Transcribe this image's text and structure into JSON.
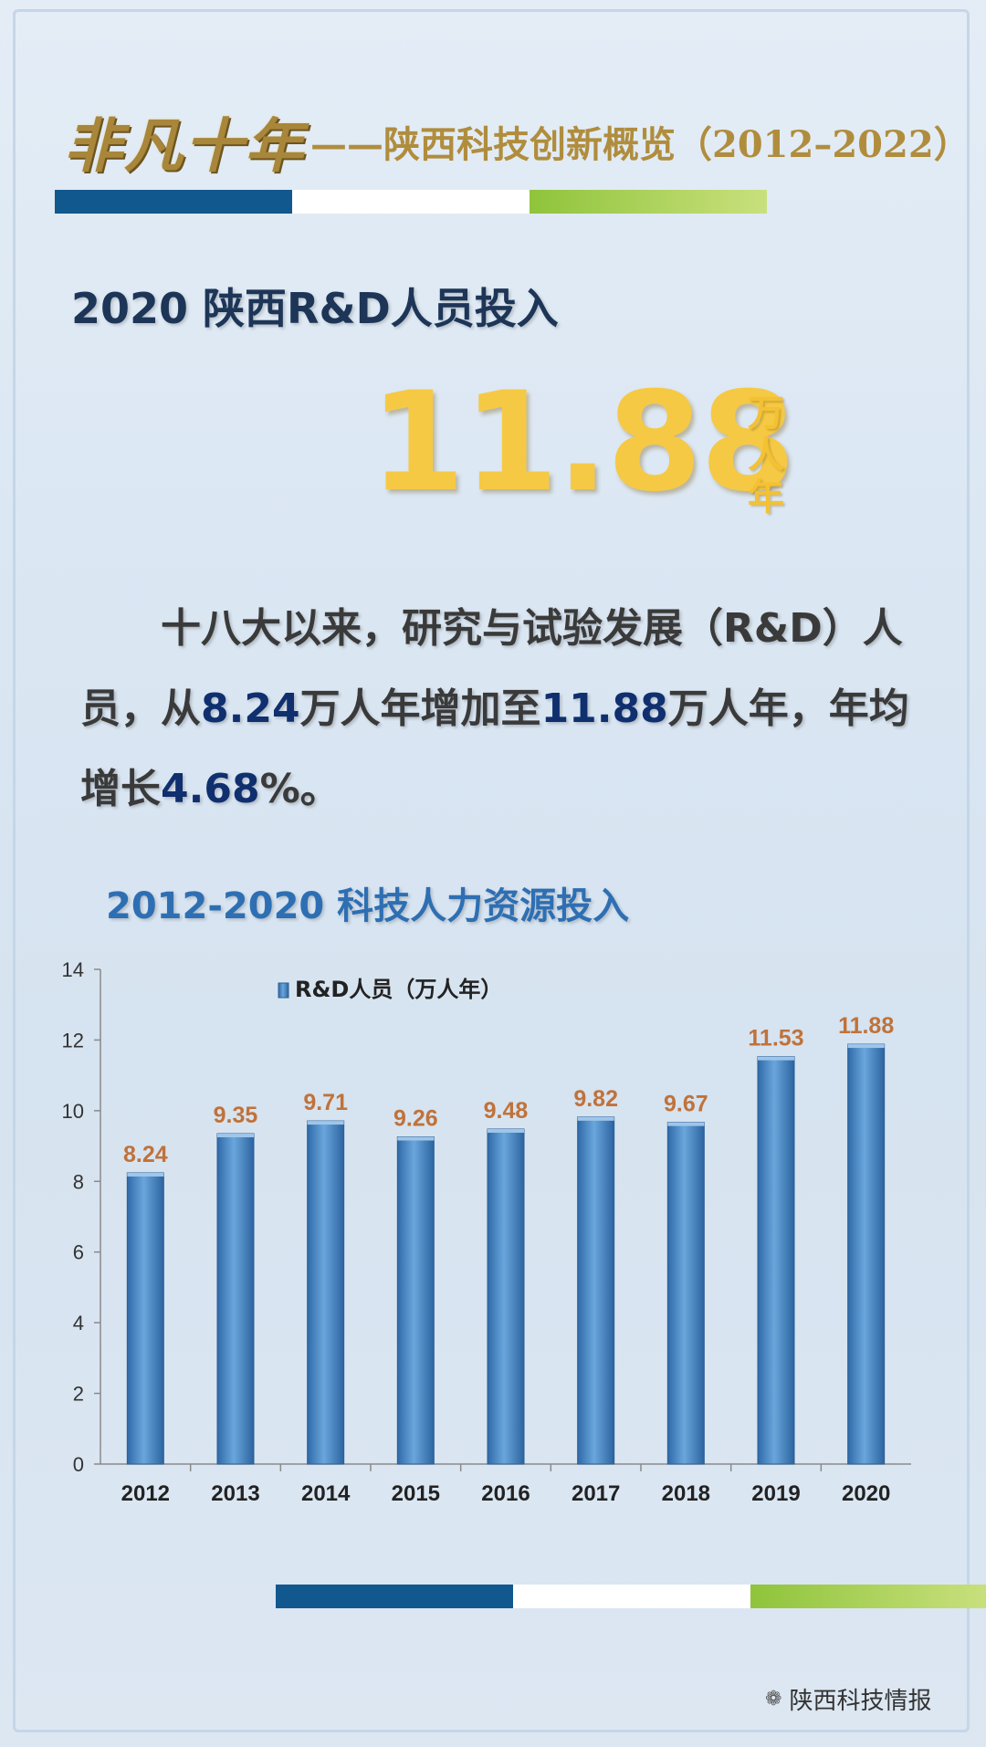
{
  "banner": {
    "calligraphy": "非凡十年",
    "subtitle": "——陕西科技创新概览（2012–2022）"
  },
  "heading": "2020 陕西R&D人员投入",
  "highlight": {
    "value": "11.88",
    "unit": "万人年"
  },
  "paragraph": {
    "p1": "十八大以来，研究与试验发展（R&D）人员，从",
    "v1": "8.24",
    "p2": "万人年增加至",
    "v2": "11.88",
    "p3": "万人年，年均增长",
    "v3": "4.68",
    "p4": "%。"
  },
  "chart_title": "2012-2020 科技人力资源投入",
  "chart_data": {
    "type": "bar",
    "categories": [
      "2012",
      "2013",
      "2014",
      "2015",
      "2016",
      "2017",
      "2018",
      "2019",
      "2020"
    ],
    "series": [
      {
        "name": "R&D人员（万人年）",
        "values": [
          8.24,
          9.35,
          9.71,
          9.26,
          9.48,
          9.82,
          9.67,
          11.53,
          11.88
        ]
      }
    ],
    "data_labels": [
      "8.24",
      "9.35",
      "9.71",
      "9.26",
      "9.48",
      "9.82",
      "9.67",
      "11.53",
      "11.88"
    ],
    "ylim": [
      0,
      14
    ],
    "yticks": [
      0,
      2,
      4,
      6,
      8,
      10,
      12,
      14
    ],
    "legend": "top-left",
    "grid": false
  },
  "footer": {
    "icon": "wechat-icon",
    "text": "陕西科技情报"
  },
  "colors": {
    "bar": "#4a87c4",
    "data_label": "#c0723a",
    "title_gold": "#b08d3d",
    "big_number": "#f6c945",
    "stripe_blue": "#11588f",
    "stripe_green": "#8fc43b"
  }
}
